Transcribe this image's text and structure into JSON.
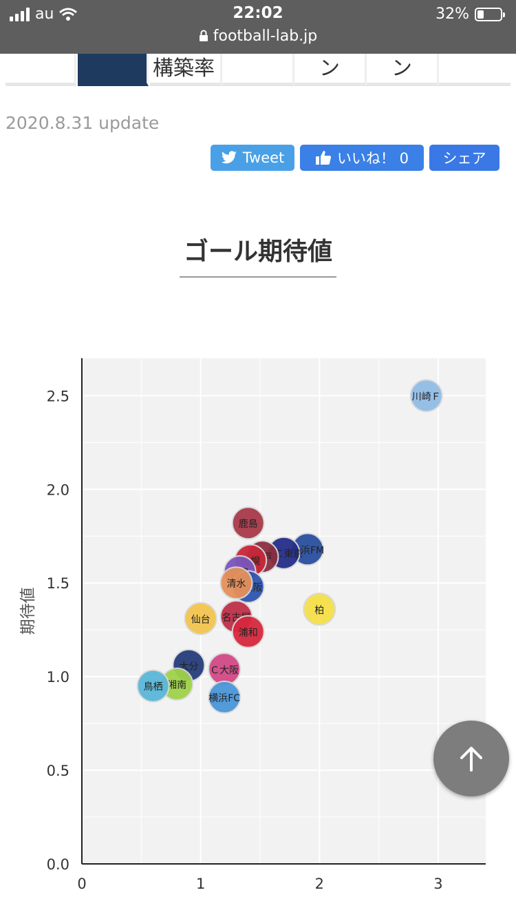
{
  "status_bar": {
    "carrier": "au",
    "time": "22:02",
    "url": "football-lab.jp",
    "battery": "32%"
  },
  "tabs": [
    {
      "label": ""
    },
    {
      "label": "構築率"
    },
    {
      "label": ""
    },
    {
      "label": "ン"
    },
    {
      "label": "ン"
    },
    {
      "label": ""
    }
  ],
  "update_text": "2020.8.31 update",
  "social": {
    "tweet": "Tweet",
    "like": "いいね！ 0",
    "share": "シェア"
  },
  "chart_title": "ゴール期待値",
  "colors": {
    "twitter": "#4aa0e6",
    "facebook": "#3a80e6",
    "plot_bg": "#f2f2f2"
  },
  "chart_data": {
    "type": "scatter",
    "title": "ゴール期待値",
    "xlabel": "",
    "ylabel": "期待値",
    "xlim": [
      0,
      3.4
    ],
    "ylim": [
      0,
      2.7
    ],
    "xticks": [
      "0",
      "1",
      "2",
      "3"
    ],
    "yticks": [
      "0.0",
      "0.5",
      "1.0",
      "1.5",
      "2.0",
      "2.5"
    ],
    "grid": true,
    "points": [
      {
        "label": "川崎Ｆ",
        "x": 2.9,
        "y": 2.5,
        "color": "#92bde6"
      },
      {
        "label": "鹿島",
        "x": 1.4,
        "y": 1.82,
        "color": "#a83a4a"
      },
      {
        "label": "横浜FM",
        "x": 1.9,
        "y": 1.68,
        "color": "#2a4fa0"
      },
      {
        "label": "ＦＣ東京",
        "x": 1.7,
        "y": 1.66,
        "color": "#262e8a"
      },
      {
        "label": "神戸",
        "x": 1.52,
        "y": 1.64,
        "color": "#8a2f40"
      },
      {
        "label": "札幌",
        "x": 1.42,
        "y": 1.62,
        "color": "#c8283a"
      },
      {
        "label": "広島",
        "x": 1.33,
        "y": 1.56,
        "color": "#7b55be"
      },
      {
        "label": "Ｇ大阪",
        "x": 1.4,
        "y": 1.48,
        "color": "#2f56b0"
      },
      {
        "label": "清水",
        "x": 1.3,
        "y": 1.5,
        "color": "#e6905a"
      },
      {
        "label": "柏",
        "x": 2.0,
        "y": 1.36,
        "color": "#f6e049"
      },
      {
        "label": "仙台",
        "x": 1.0,
        "y": 1.31,
        "color": "#f2c54f"
      },
      {
        "label": "名古屋",
        "x": 1.3,
        "y": 1.32,
        "color": "#c0304a"
      },
      {
        "label": "浦和",
        "x": 1.4,
        "y": 1.24,
        "color": "#d8283e"
      },
      {
        "label": "大分",
        "x": 0.9,
        "y": 1.06,
        "color": "#253d7a"
      },
      {
        "label": "Ｃ大阪",
        "x": 1.2,
        "y": 1.04,
        "color": "#d24a86"
      },
      {
        "label": "湘南",
        "x": 0.8,
        "y": 0.96,
        "color": "#9fd24a"
      },
      {
        "label": "鳥栖",
        "x": 0.6,
        "y": 0.95,
        "color": "#5ab8d8"
      },
      {
        "label": "横浜FC",
        "x": 1.2,
        "y": 0.89,
        "color": "#4a96d8"
      }
    ]
  }
}
